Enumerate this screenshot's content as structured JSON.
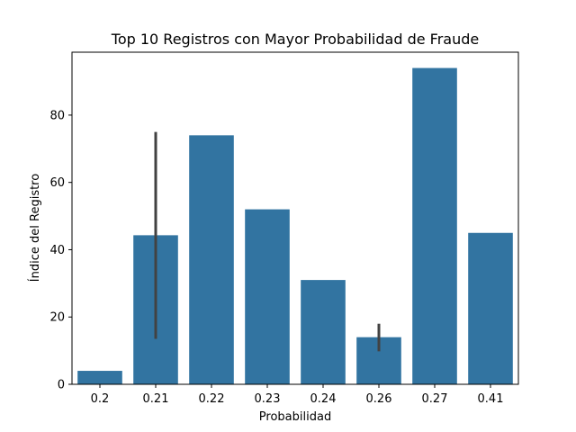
{
  "chart_data": {
    "type": "bar",
    "title": "Top 10 Registros con Mayor Probabilidad de Fraude",
    "xlabel": "Probabilidad",
    "ylabel": "Índice del Registro",
    "categories": [
      "0.2",
      "0.21",
      "0.22",
      "0.23",
      "0.24",
      "0.26",
      "0.27",
      "0.41"
    ],
    "values": [
      4,
      44.3,
      74,
      52,
      31,
      14,
      94,
      45
    ],
    "error_bars": [
      null,
      [
        13.5,
        75
      ],
      null,
      null,
      null,
      [
        9.8,
        18
      ],
      null,
      null
    ],
    "ylim": [
      0,
      98.7
    ],
    "yticks": [
      0,
      20,
      40,
      60,
      80
    ],
    "bar_color": "#3274a1",
    "error_color": "#424242",
    "grid": false,
    "legend": "none"
  }
}
